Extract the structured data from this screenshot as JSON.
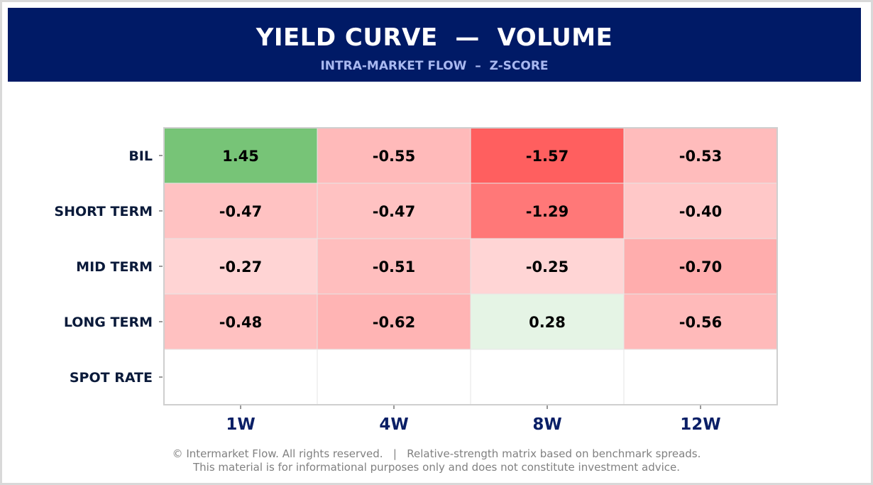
{
  "header": {
    "title": "YIELD CURVE  —  VOLUME",
    "subtitle": "INTRA-MARKET FLOW  –  Z-SCORE"
  },
  "chart_data": {
    "type": "heatmap",
    "title": "YIELD CURVE  —  VOLUME",
    "subtitle": "INTRA-MARKET FLOW  –  Z-SCORE",
    "columns": [
      "1W",
      "4W",
      "8W",
      "12W"
    ],
    "rows": [
      "BIL",
      "SHORT TERM",
      "MID TERM",
      "LONG TERM",
      "SPOT RATE"
    ],
    "values": [
      [
        1.45,
        -0.55,
        -1.57,
        -0.53
      ],
      [
        -0.47,
        -0.47,
        -1.29,
        -0.4
      ],
      [
        -0.27,
        -0.51,
        -0.25,
        -0.7
      ],
      [
        -0.48,
        -0.62,
        0.28,
        -0.56
      ],
      [
        null,
        null,
        null,
        null
      ]
    ],
    "value_format": "2 decimals",
    "colors": {
      "positive": "#6cbf6c",
      "negative": "#ff5f5f",
      "empty": "#ffffff",
      "grid": "#e6e6e6",
      "label": "#0a1a3a",
      "column_label": "#0a1f66"
    },
    "grid": true
  },
  "footer": {
    "line1": "© Intermarket Flow. All rights reserved.   |   Relative-strength matrix based on benchmark spreads.",
    "line2": "This material is for informational purposes only and does not constitute investment advice."
  }
}
